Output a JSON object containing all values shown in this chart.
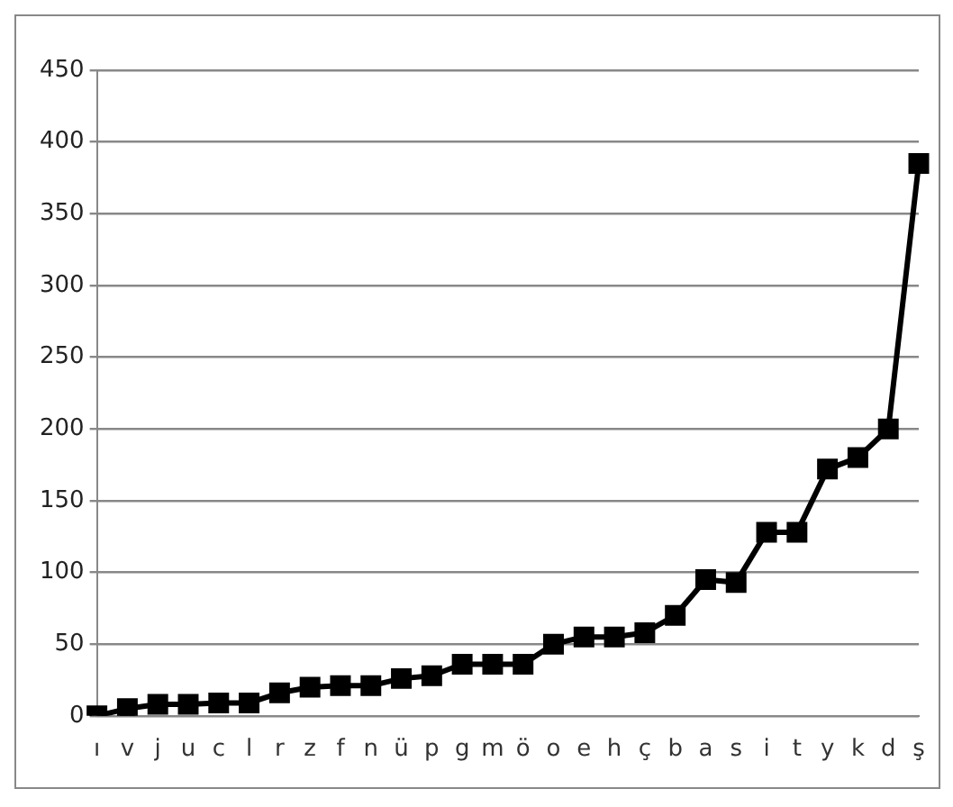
{
  "chart_data": {
    "type": "line",
    "categories": [
      "ı",
      "v",
      "j",
      "u",
      "c",
      "l",
      "r",
      "z",
      "f",
      "n",
      "ü",
      "p",
      "g",
      "m",
      "ö",
      "o",
      "e",
      "h",
      "ç",
      "b",
      "a",
      "s",
      "i",
      "t",
      "y",
      "k",
      "d",
      "ş"
    ],
    "series": [
      {
        "color": "#000000",
        "values": [
          0,
          5,
          8,
          8,
          9,
          9,
          16,
          20,
          21,
          21,
          26,
          28,
          36,
          36,
          36,
          50,
          55,
          55,
          58,
          70,
          95,
          93,
          128,
          128,
          172,
          180,
          200,
          385
        ]
      }
    ],
    "ylim": [
      0,
      450
    ],
    "yticks": [
      0,
      50,
      100,
      150,
      200,
      250,
      300,
      350,
      400,
      450
    ],
    "grid": "y",
    "legend": false,
    "marker": "square",
    "line_style": "solid"
  }
}
